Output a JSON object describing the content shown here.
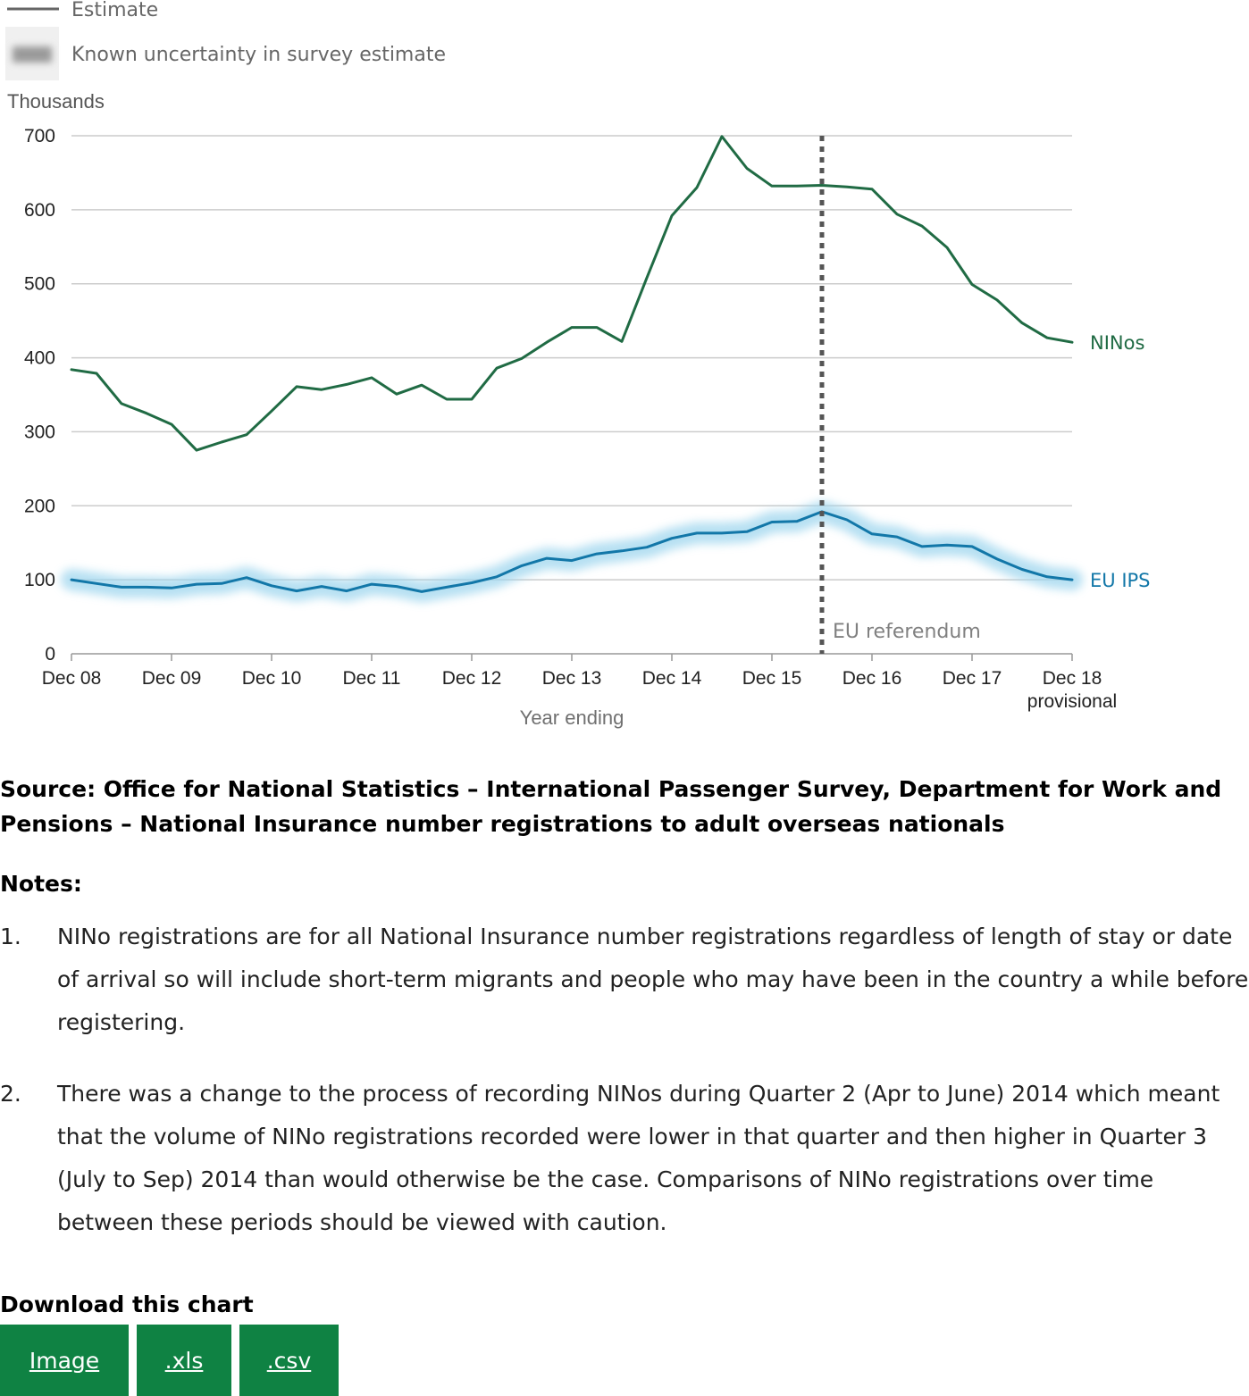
{
  "legend": {
    "estimate_label": "Estimate",
    "uncertainty_label": "Known uncertainty in survey estimate"
  },
  "chart_data": {
    "type": "line",
    "ylabel": "Thousands",
    "xlabel": "Year ending",
    "ylim": [
      0,
      700
    ],
    "yticks": [
      0,
      100,
      200,
      300,
      400,
      500,
      600,
      700
    ],
    "x_tick_labels": [
      "Dec 08",
      "Dec 09",
      "Dec 10",
      "Dec 11",
      "Dec 12",
      "Dec 13",
      "Dec 14",
      "Dec 15",
      "Dec 16",
      "Dec 17",
      "Dec 18"
    ],
    "x_tick_sublabel": "provisional",
    "grid": true,
    "x_quarters": [
      "Dec 08",
      "Mar 09",
      "Jun 09",
      "Sep 09",
      "Dec 09",
      "Mar 10",
      "Jun 10",
      "Sep 10",
      "Dec 10",
      "Mar 11",
      "Jun 11",
      "Sep 11",
      "Dec 11",
      "Mar 12",
      "Jun 12",
      "Sep 12",
      "Dec 12",
      "Mar 13",
      "Jun 13",
      "Sep 13",
      "Dec 13",
      "Mar 14",
      "Jun 14",
      "Sep 14",
      "Dec 14",
      "Mar 15",
      "Jun 15",
      "Sep 15",
      "Dec 15",
      "Mar 16",
      "Jun 16",
      "Sep 16",
      "Dec 16",
      "Mar 17",
      "Jun 17",
      "Sep 17",
      "Dec 17",
      "Mar 18",
      "Jun 18",
      "Sep 18",
      "Dec 18"
    ],
    "series": [
      {
        "name": "NINos",
        "color": "#206b44",
        "values": [
          384,
          379,
          338,
          325,
          310,
          275,
          286,
          296,
          328,
          361,
          357,
          364,
          373,
          351,
          363,
          344,
          344,
          386,
          399,
          421,
          441,
          441,
          422,
          508,
          592,
          630,
          699,
          656,
          632,
          632,
          633,
          631,
          628,
          594,
          578,
          549,
          499,
          478,
          447,
          427,
          421
        ]
      },
      {
        "name": "EU IPS",
        "color": "#1277a8",
        "uncertainty_color": "#9fd6ee",
        "values": [
          100,
          95,
          90,
          90,
          89,
          94,
          95,
          103,
          92,
          85,
          91,
          85,
          94,
          91,
          84,
          90,
          96,
          104,
          119,
          129,
          126,
          135,
          139,
          144,
          156,
          163,
          163,
          165,
          178,
          179,
          192,
          181,
          162,
          158,
          145,
          147,
          145,
          128,
          114,
          104,
          100
        ]
      }
    ],
    "annotations": [
      {
        "label": "EU referendum",
        "x": "Jun 16",
        "style": "dotted",
        "color": "#555555"
      }
    ]
  },
  "source_text": "Source: Office for National Statistics – International Passenger Survey, Department for Work and Pensions – National Insurance number registrations to adult overseas nationals",
  "notes": {
    "title": "Notes:",
    "items": [
      {
        "num": "1.",
        "text": "NINo registrations are for all National Insurance number registrations regardless of length of stay or date of arrival so will include short-term migrants and people who may have been in the country a while before registering."
      },
      {
        "num": "2.",
        "text": "There was a change to the process of recording NINos during Quarter 2 (Apr to June) 2014 which meant that the volume of NINo registrations recorded were lower in that quarter and then higher in Quarter 3 (July to Sep) 2014 than would otherwise be the case. Comparisons of NINo registrations over time between these periods should be viewed with caution."
      }
    ]
  },
  "download": {
    "title": "Download this chart",
    "buttons": [
      "Image",
      ".xls",
      ".csv"
    ],
    "button_color": "#0f8243"
  }
}
